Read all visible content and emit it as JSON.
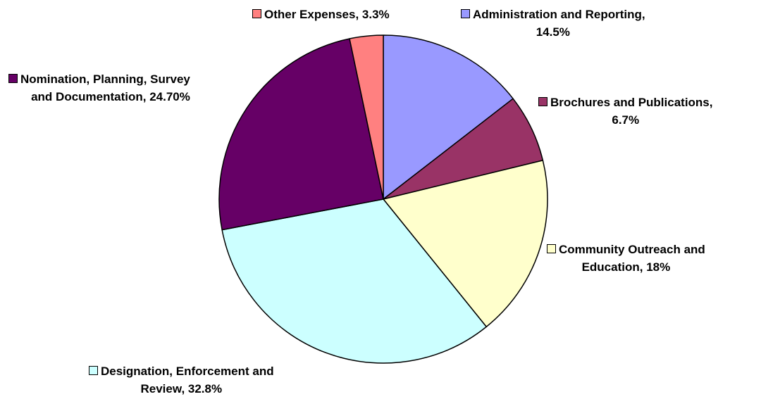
{
  "chart_data": {
    "type": "pie",
    "title": "",
    "start_angle_deg": 0,
    "direction": "clockwise",
    "slices": [
      {
        "label": "Administration and Reporting",
        "value": 14.5,
        "display": "14.5%",
        "color": "#9999ff"
      },
      {
        "label": "Brochures and Publications",
        "value": 6.7,
        "display": "6.7%",
        "color": "#993366"
      },
      {
        "label": "Community Outreach and Education",
        "value": 18,
        "display": "18%",
        "color": "#ffffcc"
      },
      {
        "label": "Designation, Enforcement and Review",
        "value": 32.8,
        "display": "32.8%",
        "color": "#ccffff"
      },
      {
        "label": "Nomination, Planning, Survey and Documentation",
        "value": 24.7,
        "display": "24.70%",
        "color": "#660066"
      },
      {
        "label": "Other Expenses",
        "value": 3.3,
        "display": "3.3%",
        "color": "#ff8080"
      }
    ],
    "data_labels": [
      {
        "lines": [
          "Administration and Reporting,",
          "14.5%"
        ]
      },
      {
        "lines": [
          "Brochures and Publications,",
          "6.7%"
        ]
      },
      {
        "lines": [
          "Community Outreach and",
          "Education, 18%"
        ]
      },
      {
        "lines": [
          "Designation, Enforcement and",
          "Review, 32.8%"
        ]
      },
      {
        "lines": [
          "Nomination, Planning, Survey",
          "and Documentation, 24.70%"
        ]
      },
      {
        "lines": [
          "Other Expenses, 3.3%"
        ]
      }
    ]
  }
}
